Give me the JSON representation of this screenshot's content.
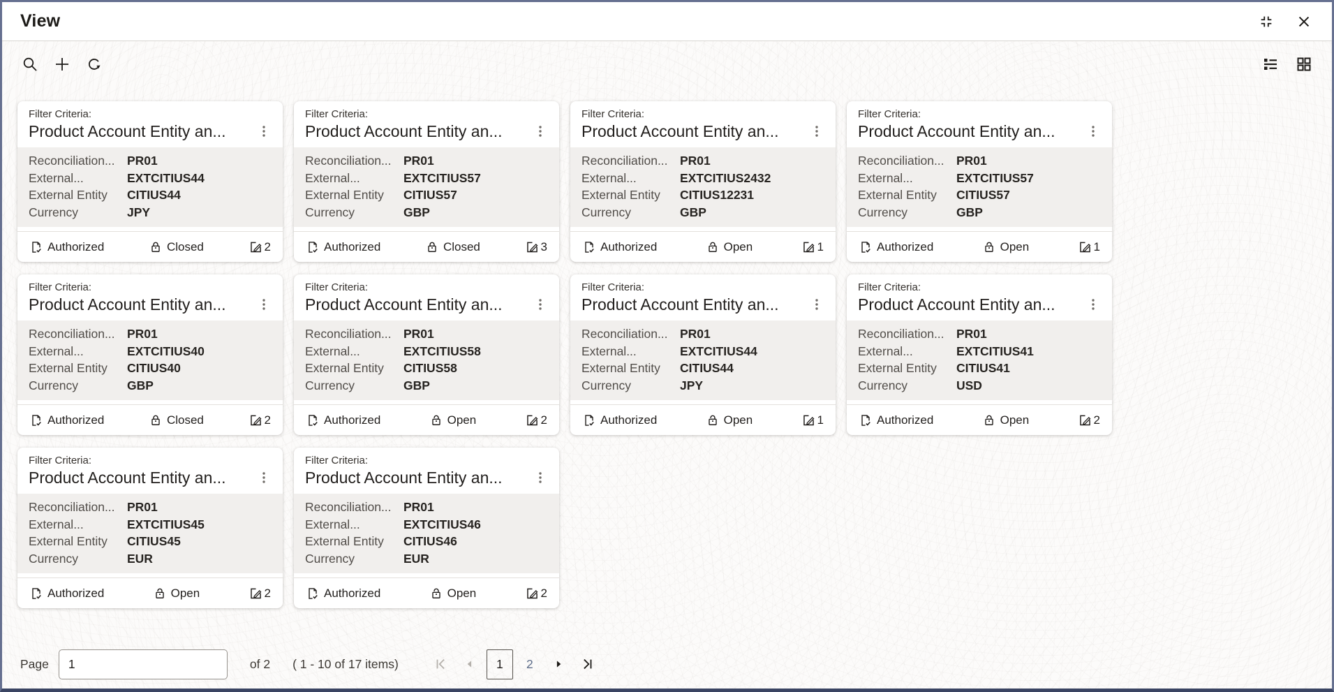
{
  "window": {
    "title": "View"
  },
  "toolbar": {
    "left_icons": [
      "search-icon",
      "add-icon",
      "refresh-icon"
    ],
    "right_icons": [
      "list-view-icon",
      "grid-view-icon"
    ],
    "window_icons": [
      "restore-window-icon",
      "close-icon"
    ]
  },
  "card_common": {
    "filter_label": "Filter Criteria:"
  },
  "cards": [
    {
      "title": "Product Account Entity an...",
      "authorization": "Authorized",
      "status": "Closed",
      "edit_count": "2",
      "fields": [
        {
          "label": "Reconciliation...",
          "value": "PR01"
        },
        {
          "label": "External...",
          "value": "EXTCITIUS44"
        },
        {
          "label": "External Entity",
          "value": "CITIUS44"
        },
        {
          "label": "Currency",
          "value": "JPY"
        }
      ]
    },
    {
      "title": "Product Account Entity an...",
      "authorization": "Authorized",
      "status": "Closed",
      "edit_count": "3",
      "fields": [
        {
          "label": "Reconciliation...",
          "value": "PR01"
        },
        {
          "label": "External...",
          "value": "EXTCITIUS57"
        },
        {
          "label": "External Entity",
          "value": "CITIUS57"
        },
        {
          "label": "Currency",
          "value": "GBP"
        }
      ]
    },
    {
      "title": "Product Account Entity an...",
      "authorization": "Authorized",
      "status": "Open",
      "edit_count": "1",
      "fields": [
        {
          "label": "Reconciliation...",
          "value": "PR01"
        },
        {
          "label": "External...",
          "value": "EXTCITIUS2432"
        },
        {
          "label": "External Entity",
          "value": "CITIUS12231"
        },
        {
          "label": "Currency",
          "value": "GBP"
        }
      ]
    },
    {
      "title": "Product Account Entity an...",
      "authorization": "Authorized",
      "status": "Open",
      "edit_count": "1",
      "fields": [
        {
          "label": "Reconciliation...",
          "value": "PR01"
        },
        {
          "label": "External...",
          "value": "EXTCITIUS57"
        },
        {
          "label": "External Entity",
          "value": "CITIUS57"
        },
        {
          "label": "Currency",
          "value": "GBP"
        }
      ]
    },
    {
      "title": "Product Account Entity an...",
      "authorization": "Authorized",
      "status": "Closed",
      "edit_count": "2",
      "fields": [
        {
          "label": "Reconciliation...",
          "value": "PR01"
        },
        {
          "label": "External...",
          "value": "EXTCITIUS40"
        },
        {
          "label": "External Entity",
          "value": "CITIUS40"
        },
        {
          "label": "Currency",
          "value": "GBP"
        }
      ]
    },
    {
      "title": "Product Account Entity an...",
      "authorization": "Authorized",
      "status": "Open",
      "edit_count": "2",
      "fields": [
        {
          "label": "Reconciliation...",
          "value": "PR01"
        },
        {
          "label": "External...",
          "value": "EXTCITIUS58"
        },
        {
          "label": "External Entity",
          "value": "CITIUS58"
        },
        {
          "label": "Currency",
          "value": "GBP"
        }
      ]
    },
    {
      "title": "Product Account Entity an...",
      "authorization": "Authorized",
      "status": "Open",
      "edit_count": "1",
      "fields": [
        {
          "label": "Reconciliation...",
          "value": "PR01"
        },
        {
          "label": "External...",
          "value": "EXTCITIUS44"
        },
        {
          "label": "External Entity",
          "value": "CITIUS44"
        },
        {
          "label": "Currency",
          "value": "JPY"
        }
      ]
    },
    {
      "title": "Product Account Entity an...",
      "authorization": "Authorized",
      "status": "Open",
      "edit_count": "2",
      "fields": [
        {
          "label": "Reconciliation...",
          "value": "PR01"
        },
        {
          "label": "External...",
          "value": "EXTCITIUS41"
        },
        {
          "label": "External Entity",
          "value": "CITIUS41"
        },
        {
          "label": "Currency",
          "value": "USD"
        }
      ]
    },
    {
      "title": "Product Account Entity an...",
      "authorization": "Authorized",
      "status": "Open",
      "edit_count": "2",
      "fields": [
        {
          "label": "Reconciliation...",
          "value": "PR01"
        },
        {
          "label": "External...",
          "value": "EXTCITIUS45"
        },
        {
          "label": "External Entity",
          "value": "CITIUS45"
        },
        {
          "label": "Currency",
          "value": "EUR"
        }
      ]
    },
    {
      "title": "Product Account Entity an...",
      "authorization": "Authorized",
      "status": "Open",
      "edit_count": "2",
      "fields": [
        {
          "label": "Reconciliation...",
          "value": "PR01"
        },
        {
          "label": "External...",
          "value": "EXTCITIUS46"
        },
        {
          "label": "External Entity",
          "value": "CITIUS46"
        },
        {
          "label": "Currency",
          "value": "EUR"
        }
      ]
    }
  ],
  "pagination": {
    "page_label": "Page",
    "page_value": "1",
    "of_text": "of 2",
    "items_text": "( 1 - 10 of 17 items)",
    "pages": [
      "1",
      "2"
    ],
    "current_page": "1"
  },
  "colors": {
    "frame_border": "#667090",
    "frame_bottom": "#3a4462",
    "card_body_bg": "#f1efed",
    "text_dark": "#211e1c",
    "label_gray": "#514d49",
    "page_link": "#5e6e8b",
    "disabled_gray": "#b5b1ac"
  }
}
